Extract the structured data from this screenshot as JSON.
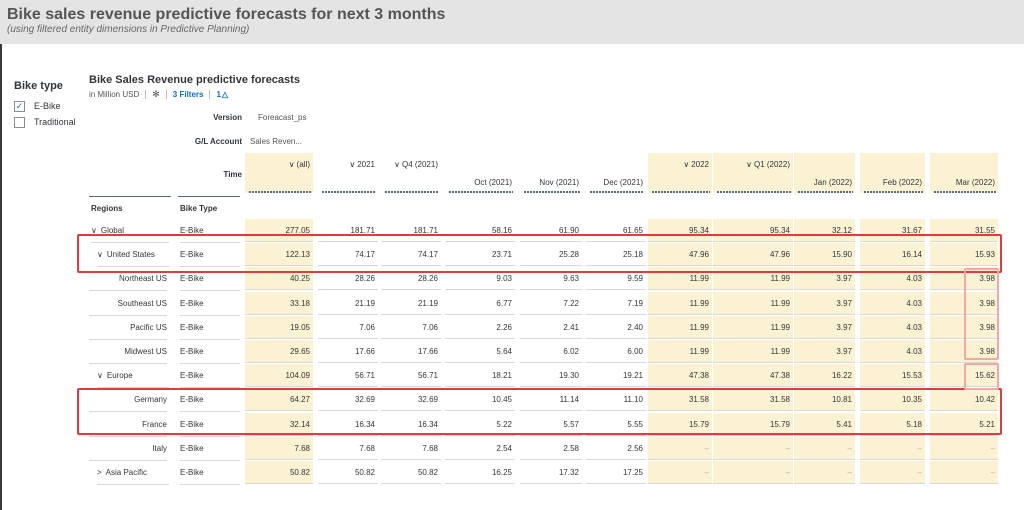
{
  "header": {
    "title": "Bike sales revenue predictive forecasts for next 3 months",
    "subtitle": "(using filtered entity dimensions in Predictive Planning)"
  },
  "filter": {
    "title": "Bike type",
    "options": [
      {
        "label": "E-Bike",
        "checked": true
      },
      {
        "label": "Traditional",
        "checked": false
      }
    ]
  },
  "widget": {
    "title": "Bike Sales Revenue predictive forecasts",
    "unit": "in Million USD",
    "filters_link": "3 Filters",
    "info_count": "1"
  },
  "dimensions": {
    "version_label": "Version",
    "version_value": "Foreacast_ps",
    "account_label": "G/L Account",
    "account_value": "Sales Reven...",
    "time_label": "Time",
    "regions_label": "Regions",
    "biketype_label": "Bike Type"
  },
  "columns": [
    {
      "label": "(all)",
      "chevron": "∨",
      "yellow": true
    },
    {
      "label": "2021",
      "chevron": "∨",
      "yellow": false
    },
    {
      "label": "Q4 (2021)",
      "chevron": "∨",
      "yellow": false
    },
    {
      "label": "Oct (2021)",
      "chevron": "",
      "yellow": false
    },
    {
      "label": "Nov (2021)",
      "chevron": "",
      "yellow": false
    },
    {
      "label": "Dec (2021)",
      "chevron": "",
      "yellow": false
    },
    {
      "label": "2022",
      "chevron": "∨",
      "yellow": true
    },
    {
      "label": "Q1 (2022)",
      "chevron": "∨",
      "yellow": true
    },
    {
      "label": "Jan (2022)",
      "chevron": "",
      "yellow": true
    },
    {
      "label": "Feb (2022)",
      "chevron": "",
      "yellow": true
    },
    {
      "label": "Mar (2022)",
      "chevron": "",
      "yellow": true
    }
  ],
  "rows": [
    {
      "region": "Global",
      "chevron": "∨",
      "indent": 0,
      "type": "E-Bike",
      "values": [
        "277.05",
        "181.71",
        "181.71",
        "58.16",
        "61.90",
        "61.65",
        "95.34",
        "95.34",
        "32.12",
        "31.67",
        "31.55"
      ]
    },
    {
      "region": "United States",
      "chevron": "∨",
      "indent": 1,
      "type": "E-Bike",
      "values": [
        "122.13",
        "74.17",
        "74.17",
        "23.71",
        "25.28",
        "25.18",
        "47.96",
        "47.96",
        "15.90",
        "16.14",
        "15.93"
      ]
    },
    {
      "region": "Northeast US",
      "chevron": "",
      "indent": 2,
      "type": "E-Bike",
      "values": [
        "40.25",
        "28.26",
        "28.26",
        "9.03",
        "9.63",
        "9.59",
        "11.99",
        "11.99",
        "3.97",
        "4.03",
        "3.98"
      ]
    },
    {
      "region": "Southeast US",
      "chevron": "",
      "indent": 2,
      "type": "E-Bike",
      "values": [
        "33.18",
        "21.19",
        "21.19",
        "6.77",
        "7.22",
        "7.19",
        "11.99",
        "11.99",
        "3.97",
        "4.03",
        "3.98"
      ]
    },
    {
      "region": "Pacific US",
      "chevron": "",
      "indent": 2,
      "type": "E-Bike",
      "values": [
        "19.05",
        "7.06",
        "7.06",
        "2.26",
        "2.41",
        "2.40",
        "11.99",
        "11.99",
        "3.97",
        "4.03",
        "3.98"
      ]
    },
    {
      "region": "Midwest US",
      "chevron": "",
      "indent": 2,
      "type": "E-Bike",
      "values": [
        "29.65",
        "17.66",
        "17.66",
        "5.64",
        "6.02",
        "6.00",
        "11.99",
        "11.99",
        "3.97",
        "4.03",
        "3.98"
      ]
    },
    {
      "region": "Europe",
      "chevron": "∨",
      "indent": 1,
      "type": "E-Bike",
      "values": [
        "104.09",
        "56.71",
        "56.71",
        "18.21",
        "19.30",
        "19.21",
        "47.38",
        "47.38",
        "16.22",
        "15.53",
        "15.62"
      ]
    },
    {
      "region": "Germany",
      "chevron": "",
      "indent": 2,
      "type": "E-Bike",
      "values": [
        "64.27",
        "32.69",
        "32.69",
        "10.45",
        "11.14",
        "11.10",
        "31.58",
        "31.58",
        "10.81",
        "10.35",
        "10.42"
      ]
    },
    {
      "region": "France",
      "chevron": "",
      "indent": 2,
      "type": "E-Bike",
      "values": [
        "32.14",
        "16.34",
        "16.34",
        "5.22",
        "5.57",
        "5.55",
        "15.79",
        "15.79",
        "5.41",
        "5.18",
        "5.21"
      ]
    },
    {
      "region": "Italy",
      "chevron": "",
      "indent": 2,
      "type": "E-Bike",
      "values": [
        "7.68",
        "7.68",
        "7.68",
        "2.54",
        "2.58",
        "2.56",
        "–",
        "–",
        "–",
        "–",
        "–"
      ]
    },
    {
      "region": "Asia Pacific",
      "chevron": ">",
      "indent": 1,
      "type": "E-Bike",
      "values": [
        "50.82",
        "50.82",
        "50.82",
        "16.25",
        "17.32",
        "17.25",
        "–",
        "–",
        "–",
        "–",
        "–"
      ]
    }
  ],
  "colors": {
    "highlight": "#e43a3a",
    "forecast_cell": "#fbf2d3",
    "link": "#0a6ed1"
  }
}
